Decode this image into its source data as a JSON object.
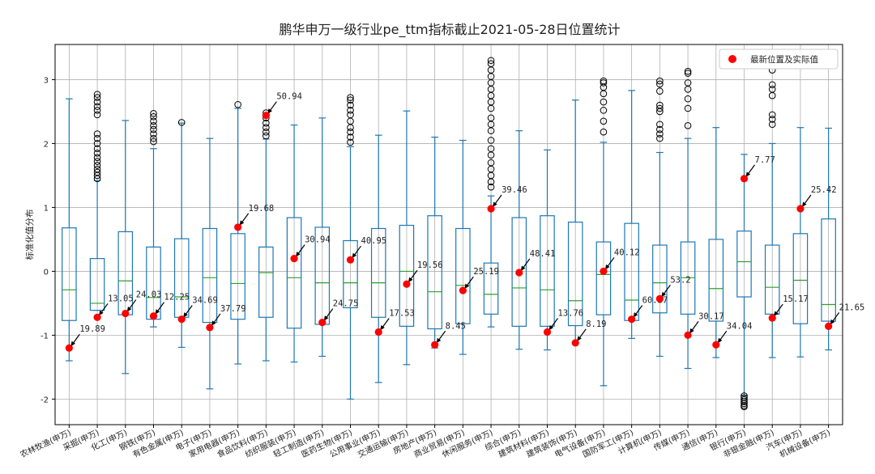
{
  "chart_data": {
    "type": "box",
    "title": "鹏华申万一级行业pe_ttm指标截止2021-05-28日位置统计",
    "ylabel": "标准化值分布",
    "xlabel": "",
    "ylim": [
      -2.4,
      3.55
    ],
    "yticks": [
      -2,
      -1,
      0,
      1,
      2,
      3
    ],
    "grid": true,
    "legend": {
      "label": "最新位置及实际值",
      "placement": "top-right"
    },
    "colors": {
      "box": "#1f77b4",
      "median": "#2ca02c",
      "marker": "#ff0000",
      "arrow": "#000000"
    },
    "categories": [
      "农林牧渔(申万)",
      "采掘(申万)",
      "化工(申万)",
      "钢铁(申万)",
      "有色金属(申万)",
      "电子(申万)",
      "家用电器(申万)",
      "食品饮料(申万)",
      "纺织服装(申万)",
      "轻工制造(申万)",
      "医药生物(申万)",
      "公用事业(申万)",
      "交通运输(申万)",
      "房地产(申万)",
      "商业贸易(申万)",
      "休闲服务(申万)",
      "综合(申万)",
      "建筑材料(申万)",
      "建筑装饰(申万)",
      "电气设备(申万)",
      "国防军工(申万)",
      "计算机(申万)",
      "传媒(申万)",
      "通信(申万)",
      "银行(申万)",
      "非银金融(申万)",
      "汽车(申万)",
      "机械设备(申万)"
    ],
    "boxes": [
      {
        "wl": -1.4,
        "q1": -0.77,
        "med": -0.29,
        "q3": 0.68,
        "wh": 2.7,
        "fliers": []
      },
      {
        "wl": -0.61,
        "q1": -0.61,
        "med": -0.5,
        "q3": 0.2,
        "wh": 1.42,
        "fliers": [
          1.45,
          1.5,
          1.55,
          1.6,
          1.66,
          1.72,
          1.78,
          1.85,
          1.92,
          2.0,
          2.08,
          2.15,
          2.45,
          2.52,
          2.58,
          2.65,
          2.72,
          2.77
        ]
      },
      {
        "wl": -1.6,
        "q1": -0.68,
        "med": -0.15,
        "q3": 0.62,
        "wh": 2.36,
        "fliers": []
      },
      {
        "wl": -0.87,
        "q1": -0.75,
        "med": -0.41,
        "q3": 0.38,
        "wh": 1.92,
        "fliers": [
          2.03,
          2.08,
          2.15,
          2.22,
          2.28,
          2.35,
          2.42,
          2.47
        ]
      },
      {
        "wl": -1.19,
        "q1": -0.72,
        "med": -0.4,
        "q3": 0.51,
        "wh": 2.32,
        "fliers": [
          2.33
        ]
      },
      {
        "wl": -1.84,
        "q1": -0.8,
        "med": -0.1,
        "q3": 0.67,
        "wh": 2.08,
        "fliers": []
      },
      {
        "wl": -1.45,
        "q1": -0.75,
        "med": -0.19,
        "q3": 0.59,
        "wh": 2.55,
        "fliers": [
          2.61
        ]
      },
      {
        "wl": -1.4,
        "q1": -0.72,
        "med": -0.02,
        "q3": 0.38,
        "wh": 2.07,
        "fliers": [
          2.12,
          2.18,
          2.25,
          2.32,
          2.4,
          2.48
        ]
      },
      {
        "wl": -1.42,
        "q1": -0.89,
        "med": -0.1,
        "q3": 0.84,
        "wh": 2.29,
        "fliers": []
      },
      {
        "wl": -1.33,
        "q1": -0.83,
        "med": -0.18,
        "q3": 0.69,
        "wh": 2.4,
        "fliers": []
      },
      {
        "wl": -2.0,
        "q1": -0.57,
        "med": -0.18,
        "q3": 0.48,
        "wh": 1.95,
        "fliers": [
          2.02,
          2.1,
          2.18,
          2.25,
          2.35,
          2.45,
          2.52,
          2.6,
          2.68,
          2.72
        ]
      },
      {
        "wl": -1.74,
        "q1": -0.72,
        "med": -0.18,
        "q3": 0.67,
        "wh": 2.13,
        "fliers": []
      },
      {
        "wl": -1.46,
        "q1": -0.86,
        "med": 0.0,
        "q3": 0.72,
        "wh": 2.51,
        "fliers": []
      },
      {
        "wl": -1.2,
        "q1": -0.9,
        "med": -0.32,
        "q3": 0.87,
        "wh": 2.1,
        "fliers": []
      },
      {
        "wl": -1.3,
        "q1": -0.82,
        "med": -0.22,
        "q3": 0.67,
        "wh": 2.05,
        "fliers": []
      },
      {
        "wl": -0.87,
        "q1": -0.67,
        "med": -0.36,
        "q3": 0.13,
        "wh": 1.18,
        "fliers": [
          1.32,
          1.4,
          1.5,
          1.6,
          1.7,
          1.82,
          1.92,
          2.05,
          2.2,
          2.3,
          2.4,
          2.55,
          2.65,
          2.75,
          2.85,
          2.95,
          3.05,
          3.15,
          3.25,
          3.3
        ]
      },
      {
        "wl": -1.22,
        "q1": -0.86,
        "med": -0.26,
        "q3": 0.84,
        "wh": 2.2,
        "fliers": []
      },
      {
        "wl": -1.23,
        "q1": -0.86,
        "med": -0.29,
        "q3": 0.87,
        "wh": 1.9,
        "fliers": []
      },
      {
        "wl": -1.12,
        "q1": -0.85,
        "med": -0.46,
        "q3": 0.77,
        "wh": 2.68,
        "fliers": []
      },
      {
        "wl": -1.79,
        "q1": -0.68,
        "med": -0.05,
        "q3": 0.46,
        "wh": 2.02,
        "fliers": [
          2.18,
          2.35,
          2.52,
          2.65,
          2.78,
          2.88,
          2.95,
          2.98
        ]
      },
      {
        "wl": -1.05,
        "q1": -0.77,
        "med": -0.45,
        "q3": 0.75,
        "wh": 2.83,
        "fliers": []
      },
      {
        "wl": -1.33,
        "q1": -0.65,
        "med": -0.18,
        "q3": 0.41,
        "wh": 1.86,
        "fliers": [
          2.08,
          2.15,
          2.22,
          2.3,
          2.5,
          2.55,
          2.6,
          2.82,
          2.93,
          2.98
        ]
      },
      {
        "wl": -1.52,
        "q1": -0.67,
        "med": -0.1,
        "q3": 0.46,
        "wh": 2.08,
        "fliers": [
          2.28,
          2.55,
          2.7,
          2.85,
          2.95,
          3.1,
          3.13
        ]
      },
      {
        "wl": -1.35,
        "q1": -0.78,
        "med": -0.27,
        "q3": 0.5,
        "wh": 2.25,
        "fliers": []
      },
      {
        "wl": -1.95,
        "q1": -0.4,
        "med": 0.15,
        "q3": 0.63,
        "wh": 1.83,
        "fliers": [
          -1.95,
          -1.98,
          -2.01,
          -2.04,
          -2.07,
          -2.1,
          -2.12
        ]
      },
      {
        "wl": -1.35,
        "q1": -0.67,
        "med": -0.25,
        "q3": 0.41,
        "wh": 2.0,
        "fliers": [
          2.3,
          2.38,
          2.45,
          2.75,
          2.85,
          2.92,
          3.15
        ]
      },
      {
        "wl": -1.34,
        "q1": -0.82,
        "med": -0.14,
        "q3": 0.59,
        "wh": 2.25,
        "fliers": []
      },
      {
        "wl": -1.23,
        "q1": -0.78,
        "med": -0.52,
        "q3": 0.82,
        "wh": 2.24,
        "fliers": []
      }
    ],
    "latest_points": [
      {
        "y": -1.2,
        "label": "19.89"
      },
      {
        "y": -0.72,
        "label": "13.05"
      },
      {
        "y": -0.66,
        "label": "24.03"
      },
      {
        "y": -0.7,
        "label": "12.25"
      },
      {
        "y": -0.75,
        "label": "34.69"
      },
      {
        "y": -0.88,
        "label": "37.79"
      },
      {
        "y": 0.69,
        "label": "19.68"
      },
      {
        "y": 2.44,
        "label": "50.94"
      },
      {
        "y": 0.2,
        "label": "30.94"
      },
      {
        "y": -0.8,
        "label": "24.75"
      },
      {
        "y": 0.18,
        "label": "40.95"
      },
      {
        "y": -0.95,
        "label": "17.53"
      },
      {
        "y": -0.2,
        "label": "19.56"
      },
      {
        "y": -1.15,
        "label": "8.45"
      },
      {
        "y": -0.3,
        "label": "25.19"
      },
      {
        "y": 0.98,
        "label": "39.46"
      },
      {
        "y": -0.02,
        "label": "48.41"
      },
      {
        "y": -0.95,
        "label": "13.76"
      },
      {
        "y": -1.12,
        "label": "8.19"
      },
      {
        "y": 0.0,
        "label": "40.12"
      },
      {
        "y": -0.75,
        "label": "60.37"
      },
      {
        "y": -0.43,
        "label": "53.2"
      },
      {
        "y": -1.0,
        "label": "30.17"
      },
      {
        "y": -1.15,
        "label": "34.04"
      },
      {
        "y": 1.45,
        "label": "7.77"
      },
      {
        "y": -0.73,
        "label": "15.17"
      },
      {
        "y": 0.98,
        "label": "25.42"
      },
      {
        "y": -0.86,
        "label": "21.65"
      }
    ]
  }
}
